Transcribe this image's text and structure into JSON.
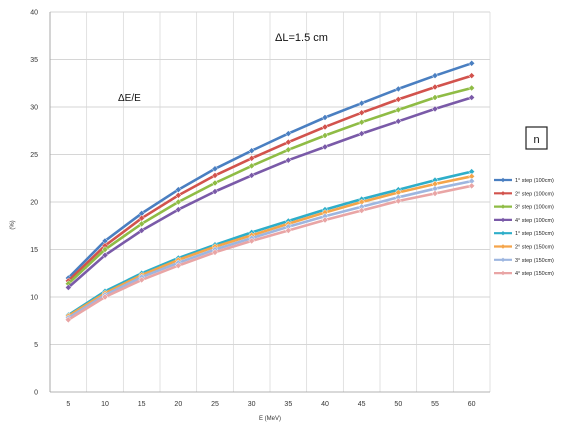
{
  "chart_data": {
    "type": "line",
    "x": [
      5,
      10,
      15,
      20,
      25,
      30,
      35,
      40,
      45,
      50,
      55,
      60
    ],
    "xlabel": "E (MeV)",
    "ylabel": "(%)",
    "ylim": [
      0,
      40
    ],
    "yticks": [
      0,
      5,
      10,
      15,
      20,
      25,
      30,
      35,
      40
    ],
    "grid": true,
    "legend_position": "right",
    "annotations": [
      "ΔL=1.5 cm",
      "ΔE/E",
      "n"
    ],
    "series": [
      {
        "name": "1° step (100cm)",
        "color": "#4a7fc1",
        "values": [
          12.0,
          15.9,
          18.8,
          21.3,
          23.5,
          25.4,
          27.2,
          28.9,
          30.4,
          31.9,
          33.3,
          34.6
        ]
      },
      {
        "name": "2° step (100cm)",
        "color": "#d2534d",
        "values": [
          11.7,
          15.4,
          18.3,
          20.7,
          22.8,
          24.6,
          26.3,
          27.9,
          29.4,
          30.8,
          32.1,
          33.3
        ]
      },
      {
        "name": "3° step (100cm)",
        "color": "#8fbc45",
        "values": [
          11.4,
          15.0,
          17.7,
          20.0,
          22.0,
          23.8,
          25.5,
          27.0,
          28.4,
          29.7,
          31.0,
          32.0
        ]
      },
      {
        "name": "4° step (100cm)",
        "color": "#7a5aa8",
        "values": [
          11.0,
          14.4,
          17.0,
          19.2,
          21.1,
          22.8,
          24.4,
          25.8,
          27.2,
          28.5,
          29.8,
          31.0
        ]
      },
      {
        "name": "1° step (150cm)",
        "color": "#2eaec9",
        "values": [
          8.1,
          10.6,
          12.5,
          14.1,
          15.5,
          16.8,
          18.0,
          19.2,
          20.3,
          21.3,
          22.3,
          23.2
        ]
      },
      {
        "name": "2° step (150cm)",
        "color": "#f5a54a",
        "values": [
          8.0,
          10.4,
          12.3,
          13.9,
          15.3,
          16.5,
          17.7,
          18.9,
          20.0,
          21.0,
          21.9,
          22.7
        ]
      },
      {
        "name": "3° step (150cm)",
        "color": "#9db6e0",
        "values": [
          7.8,
          10.2,
          12.1,
          13.6,
          15.0,
          16.2,
          17.4,
          18.5,
          19.5,
          20.5,
          21.4,
          22.2
        ]
      },
      {
        "name": "4° step (150cm)",
        "color": "#e9a5a5",
        "values": [
          7.6,
          10.0,
          11.8,
          13.3,
          14.7,
          15.9,
          17.0,
          18.1,
          19.1,
          20.1,
          20.9,
          21.7
        ]
      }
    ]
  }
}
